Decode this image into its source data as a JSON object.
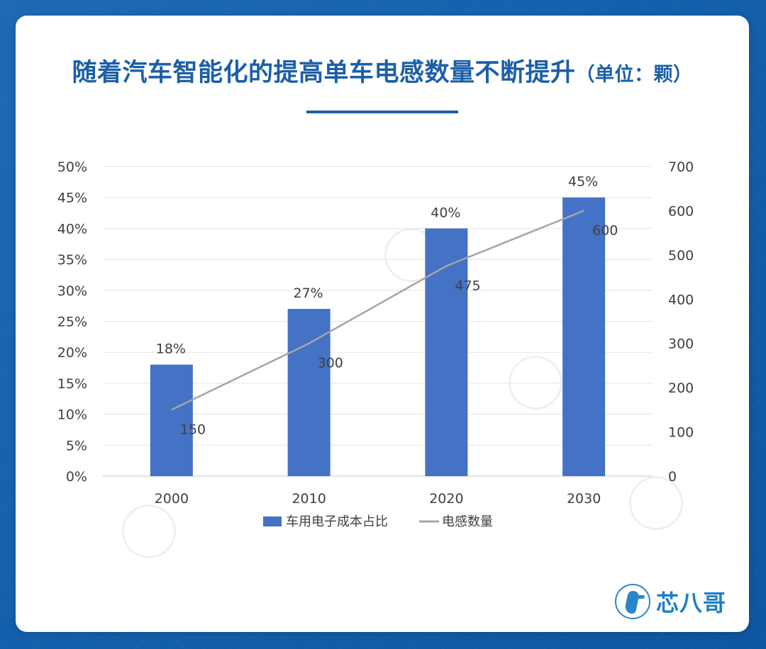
{
  "page": {
    "title": "随着汽车智能化的提高单车电感数量不断提升",
    "title_unit": "（单位：颗）",
    "brand": "芯八哥",
    "colors": {
      "background": "#1665b0",
      "title": "#1b5fa8",
      "bar": "#4472c4",
      "line": "#a5a5a5"
    }
  },
  "chart_data": {
    "type": "bar",
    "categories": [
      "2000",
      "2010",
      "2020",
      "2030"
    ],
    "series": [
      {
        "name": "车用电子成本占比",
        "type": "bar",
        "axis": "left",
        "values": [
          18,
          27,
          40,
          45
        ],
        "labels": [
          "18%",
          "27%",
          "40%",
          "45%"
        ]
      },
      {
        "name": "电感数量",
        "type": "line",
        "axis": "right",
        "values": [
          150,
          300,
          475,
          600
        ],
        "labels": [
          "150",
          "300",
          "475",
          "600"
        ]
      }
    ],
    "left_axis": {
      "range": [
        0,
        50
      ],
      "ticks": [
        "0%",
        "5%",
        "10%",
        "15%",
        "20%",
        "25%",
        "30%",
        "35%",
        "40%",
        "45%",
        "50%"
      ]
    },
    "right_axis": {
      "range": [
        0,
        700
      ],
      "ticks": [
        "0",
        "100",
        "200",
        "300",
        "400",
        "500",
        "600",
        "700"
      ]
    },
    "grid": true,
    "legend_position": "bottom"
  }
}
